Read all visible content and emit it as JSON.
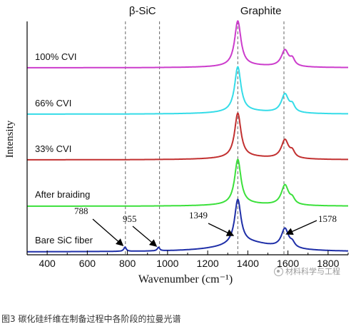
{
  "chart_data": {
    "type": "line",
    "title": "",
    "xlabel": "Wavenumber (cm⁻¹)",
    "ylabel": "Intensity",
    "xlim": [
      300,
      1900
    ],
    "xticks": [
      400,
      600,
      800,
      1000,
      1200,
      1400,
      1600,
      1800
    ],
    "y_ticks_shown": false,
    "grid": false,
    "legend": "none",
    "region_labels": [
      {
        "text": "β-SiC",
        "lines_at": [
          790,
          960
        ]
      },
      {
        "text": "Graphite",
        "lines_at": [
          1350,
          1580
        ]
      }
    ],
    "reference_lines": [
      790,
      960,
      1350,
      1580
    ],
    "series": [
      {
        "name": "Bare SiC fiber",
        "color": "#1f2fa8",
        "baseline": 0,
        "d_peak": 62,
        "g_peak": 27,
        "g_shoulder": 6,
        "extra_peaks": [
          [
            788,
            6
          ],
          [
            955,
            5
          ]
        ],
        "ramp": 14
      },
      {
        "name": "After braiding",
        "color": "#3be03b",
        "baseline": 1,
        "d_peak": 63,
        "g_peak": 28,
        "g_shoulder": 7,
        "extra_peaks": [],
        "ramp": 3
      },
      {
        "name": "33% CVI",
        "color": "#c23030",
        "baseline": 2,
        "d_peak": 62,
        "g_peak": 26,
        "g_shoulder": 8,
        "extra_peaks": [],
        "ramp": 4
      },
      {
        "name": "66% CVI",
        "color": "#35dce8",
        "baseline": 3,
        "d_peak": 63,
        "g_peak": 26,
        "g_shoulder": 9,
        "extra_peaks": [],
        "ramp": 4
      },
      {
        "name": "100% CVI",
        "color": "#cc3ccc",
        "baseline": 4,
        "d_peak": 63,
        "g_peak": 23,
        "g_shoulder": 9,
        "extra_peaks": [],
        "ramp": 3
      }
    ],
    "annotations": [
      {
        "text": "788",
        "x": 788
      },
      {
        "text": "955",
        "x": 955
      },
      {
        "text": "1349",
        "x": 1349
      },
      {
        "text": "1578",
        "x": 1578
      }
    ]
  },
  "watermark_text": "材料科学与工程",
  "caption": "图3 碳化硅纤维在制备过程中各阶段的拉曼光谱"
}
